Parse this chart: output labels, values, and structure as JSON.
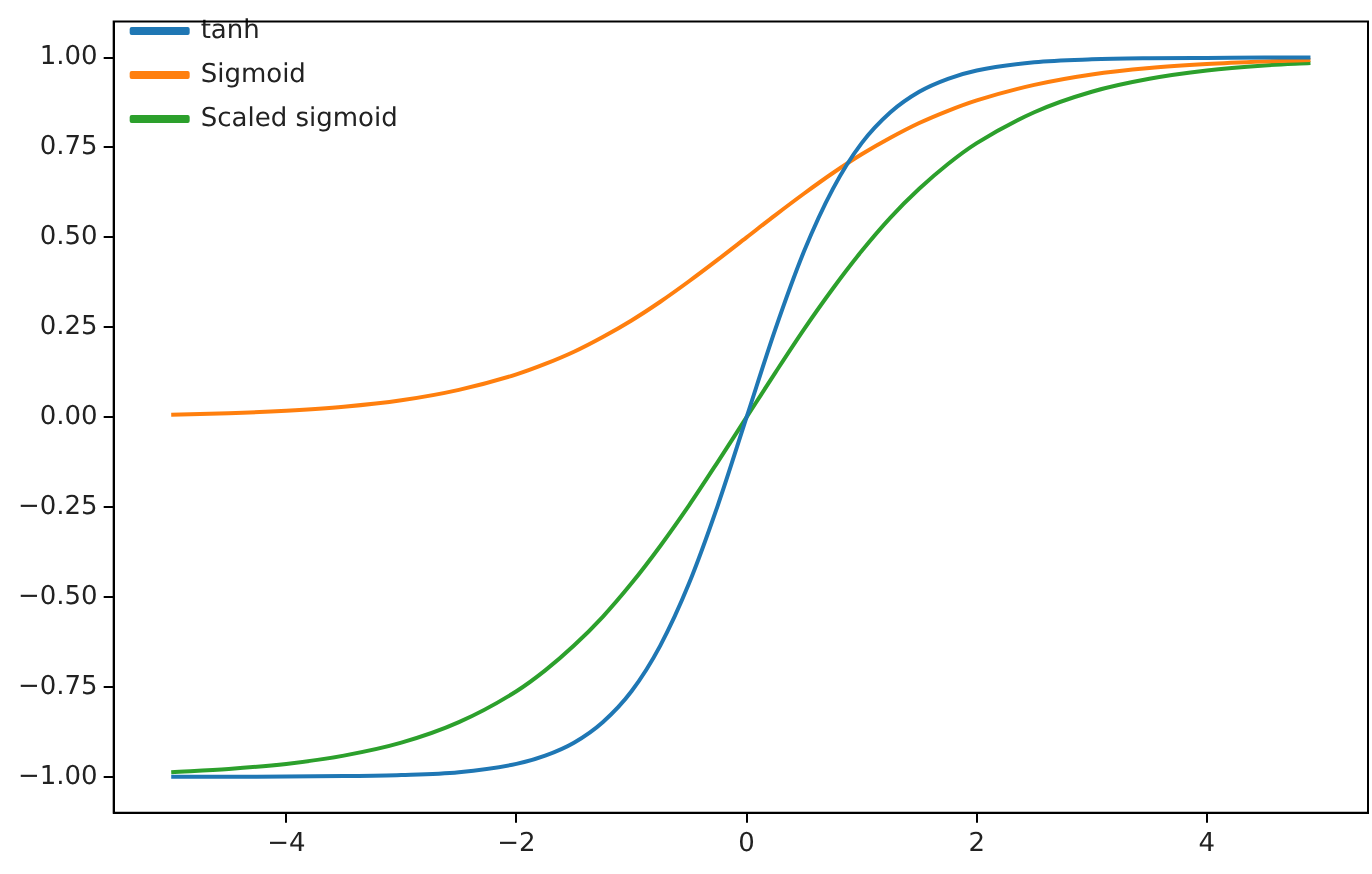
{
  "chart_data": {
    "type": "line",
    "x": [
      -5,
      -4.5,
      -4,
      -3.5,
      -3,
      -2.5,
      -2,
      -1.75,
      -1.5,
      -1.25,
      -1,
      -0.75,
      -0.5,
      -0.25,
      0,
      0.25,
      0.5,
      0.75,
      1,
      1.25,
      1.5,
      1.75,
      2,
      2.5,
      3,
      3.5,
      4,
      4.5,
      4.9
    ],
    "series": [
      {
        "name": "tanh",
        "color": "#1f77b4",
        "values": [
          -1.0,
          -1.0,
          -0.999,
          -0.998,
          -0.995,
          -0.987,
          -0.964,
          -0.941,
          -0.905,
          -0.848,
          -0.762,
          -0.635,
          -0.462,
          -0.245,
          0,
          0.245,
          0.462,
          0.635,
          0.762,
          0.848,
          0.905,
          0.941,
          0.964,
          0.987,
          0.995,
          0.998,
          0.999,
          1.0,
          1.0
        ]
      },
      {
        "name": "Sigmoid",
        "color": "#ff7f0e",
        "values": [
          0.007,
          0.011,
          0.018,
          0.029,
          0.047,
          0.076,
          0.119,
          0.148,
          0.182,
          0.223,
          0.269,
          0.321,
          0.378,
          0.438,
          0.5,
          0.562,
          0.622,
          0.679,
          0.731,
          0.777,
          0.818,
          0.852,
          0.881,
          0.924,
          0.953,
          0.971,
          0.982,
          0.989,
          0.993
        ]
      },
      {
        "name": "Scaled sigmoid",
        "color": "#2ca02c",
        "values": [
          -0.987,
          -0.978,
          -0.964,
          -0.941,
          -0.905,
          -0.848,
          -0.762,
          -0.704,
          -0.635,
          -0.555,
          -0.462,
          -0.358,
          -0.245,
          -0.124,
          0,
          0.124,
          0.245,
          0.358,
          0.462,
          0.555,
          0.635,
          0.704,
          0.762,
          0.848,
          0.905,
          0.941,
          0.964,
          0.978,
          0.985
        ]
      }
    ],
    "xlim": [
      -5.5,
      5.4
    ],
    "ylim": [
      -1.1,
      1.1
    ],
    "xticks": [
      {
        "value": -4,
        "label": "−4"
      },
      {
        "value": -2,
        "label": "−2"
      },
      0,
      2,
      4
    ],
    "yticks": [
      {
        "value": -1,
        "label": "−1.00"
      },
      {
        "value": -0.75,
        "label": "−0.75"
      },
      {
        "value": -0.5,
        "label": "−0.50"
      },
      {
        "value": -0.25,
        "label": "−0.25"
      },
      {
        "value": 0,
        "label": "0.00"
      },
      {
        "value": 0.25,
        "label": "0.25"
      },
      {
        "value": 0.5,
        "label": "0.50"
      },
      {
        "value": 0.75,
        "label": "0.75"
      },
      {
        "value": 1,
        "label": "1.00"
      }
    ],
    "grid": false,
    "legend": "top left",
    "marker": "none",
    "line_style": "solid"
  }
}
